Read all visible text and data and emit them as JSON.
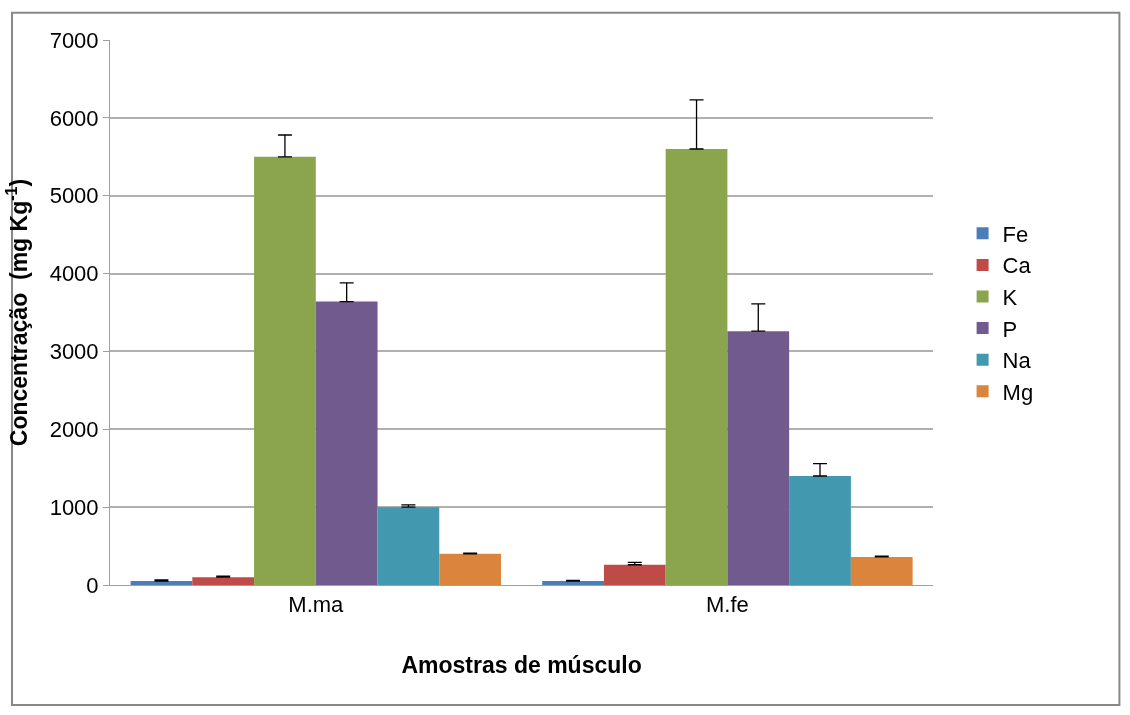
{
  "chart_data": {
    "type": "bar",
    "xlabel": "Amostras de músculo",
    "ylabel": "Concentração  (mg Kg$^{-1}$)",
    "categories": [
      "M.ma",
      "M.fe"
    ],
    "series": [
      {
        "name": "Fe",
        "color": "#4a7ebb",
        "values": [
          50,
          50
        ],
        "errors": [
          [
            50,
            65
          ],
          [
            50,
            60
          ]
        ]
      },
      {
        "name": "Ca",
        "color": "#be4b48",
        "values": [
          100,
          260
        ],
        "errors": [
          [
            100,
            115
          ],
          [
            260,
            290
          ]
        ]
      },
      {
        "name": "K",
        "color": "#8ba54e",
        "values": [
          5500,
          5600
        ],
        "errors": [
          [
            5500,
            5780
          ],
          [
            5600,
            6230
          ]
        ]
      },
      {
        "name": "P",
        "color": "#715a8e",
        "values": [
          3640,
          3260
        ],
        "errors": [
          [
            3640,
            3880
          ],
          [
            3260,
            3610
          ]
        ]
      },
      {
        "name": "Na",
        "color": "#4298ae",
        "values": [
          1000,
          1400
        ],
        "errors": [
          [
            1000,
            1030
          ],
          [
            1400,
            1560
          ]
        ]
      },
      {
        "name": "Mg",
        "color": "#db843d",
        "values": [
          400,
          360
        ],
        "errors": [
          [
            400,
            410
          ],
          [
            360,
            370
          ]
        ]
      }
    ],
    "ylim": [
      0,
      7000
    ],
    "yticks": [
      0,
      1000,
      2000,
      3000,
      4000,
      5000,
      6000,
      7000
    ],
    "grid": "y",
    "legend": "right"
  }
}
